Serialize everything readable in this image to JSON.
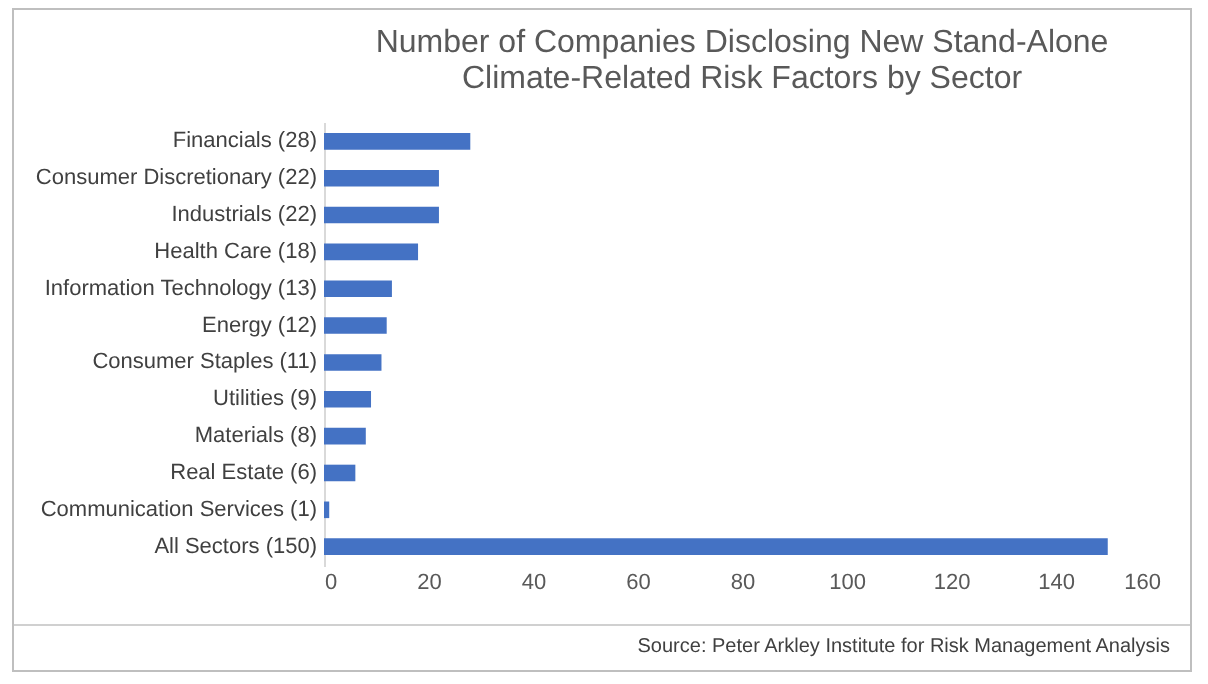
{
  "chart_data": {
    "type": "bar",
    "orientation": "horizontal",
    "title": [
      "Number of Companies Disclosing New Stand-Alone",
      "Climate-Related Risk Factors by Sector"
    ],
    "categories": [
      "Financials (28)",
      "Consumer Discretionary (22)",
      "Industrials (22)",
      "Health Care (18)",
      "Information Technology (13)",
      "Energy (12)",
      "Consumer Staples (11)",
      "Utilities (9)",
      "Materials (8)",
      "Real Estate (6)",
      "Communication Services (1)",
      "All Sectors (150)"
    ],
    "values": [
      28,
      22,
      22,
      18,
      13,
      12,
      11,
      9,
      8,
      6,
      1,
      150
    ],
    "color": "#4472c4",
    "xlim": [
      0,
      160
    ],
    "xticks": [
      0,
      20,
      40,
      60,
      80,
      100,
      120,
      140,
      160
    ],
    "grid": false,
    "annotations": [
      "Source: Peter Arkley Institute for Risk Management Analysis"
    ]
  }
}
